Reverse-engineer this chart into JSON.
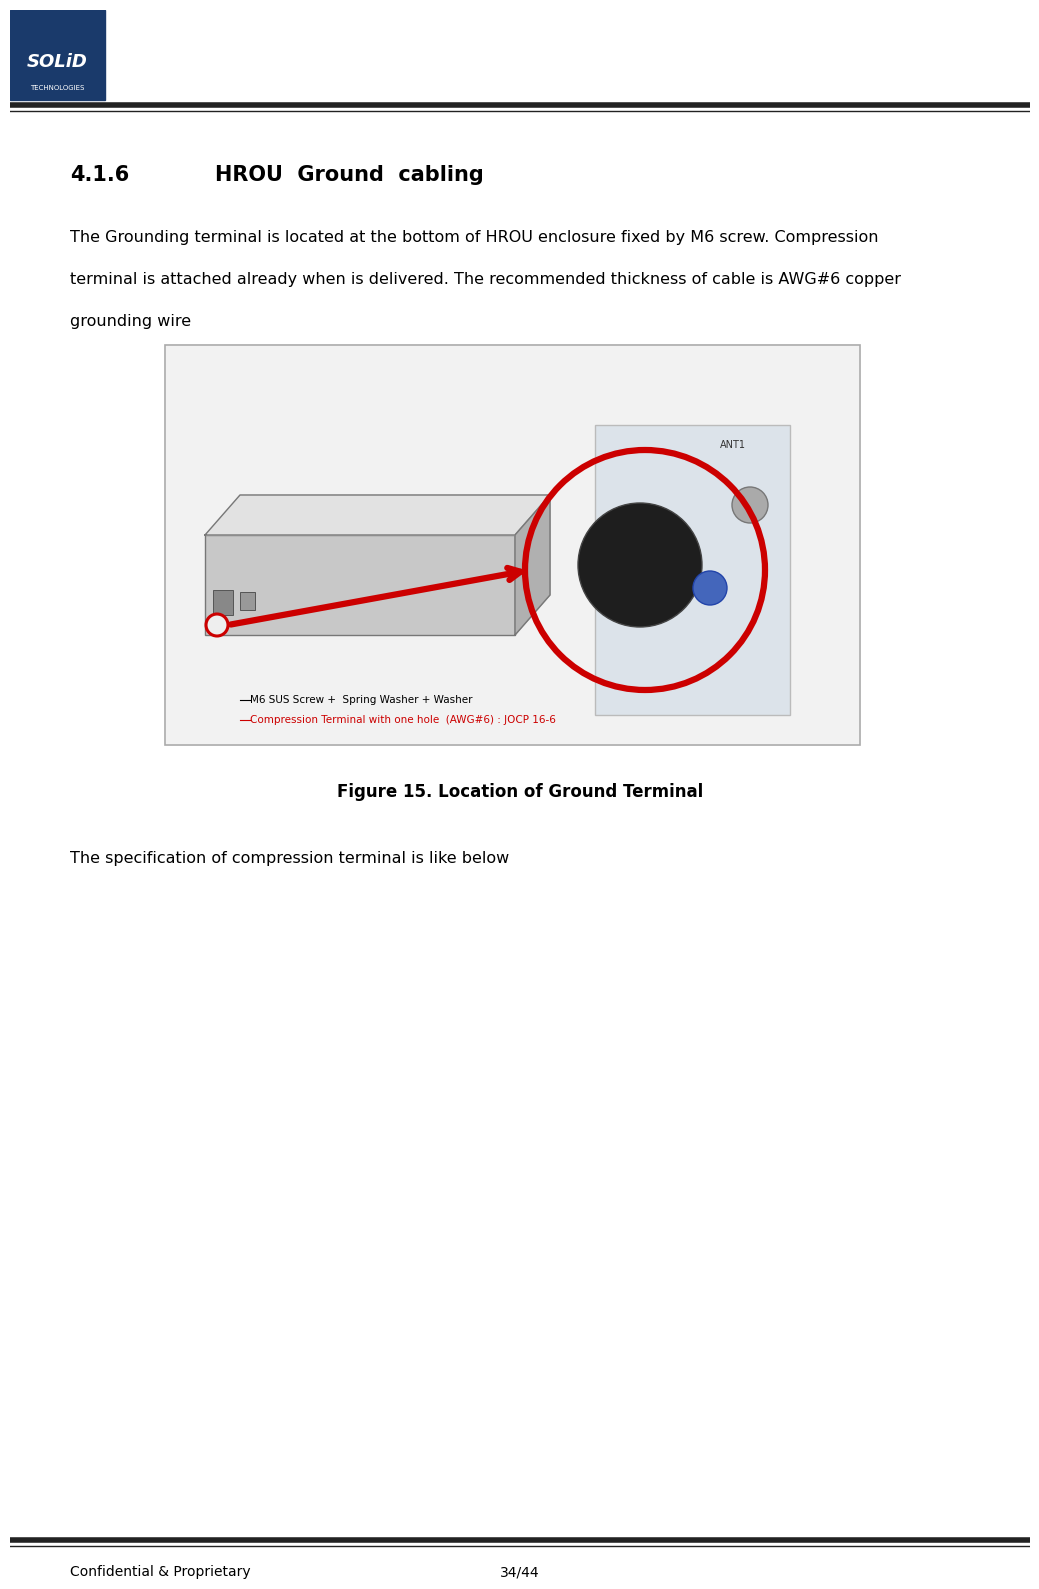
{
  "bg_color": "#ffffff",
  "logo_box_color": "#1a3a6b",
  "logo_text1": "SOLiD",
  "logo_text2": "TECHNOLOGIES",
  "header_line_color": "#222222",
  "section_number": "4.1.6",
  "section_title": "HROU  Ground  cabling",
  "body_line1": "The Grounding terminal is located at the bottom of HROU enclosure fixed by M6 screw. Compression",
  "body_line2": "terminal is attached already when is delivered. The recommended thickness of cable is AWG#6 copper",
  "body_line3": "grounding wire",
  "figure_caption": "Figure 15. Location of Ground Terminal",
  "spec_text": "The specification of compression terminal is like below",
  "footer_left": "Confidential & Proprietary",
  "footer_center": "34/44",
  "footer_line_color": "#222222",
  "image_border_color": "#aaaaaa",
  "label1": "M6 SUS Screw +  Spring Washer + Washer",
  "label2": "Compression Terminal with one hole  (AWG#6) : JOCP 16-6",
  "arrow_color": "#cc0000",
  "circle_color": "#cc0000"
}
